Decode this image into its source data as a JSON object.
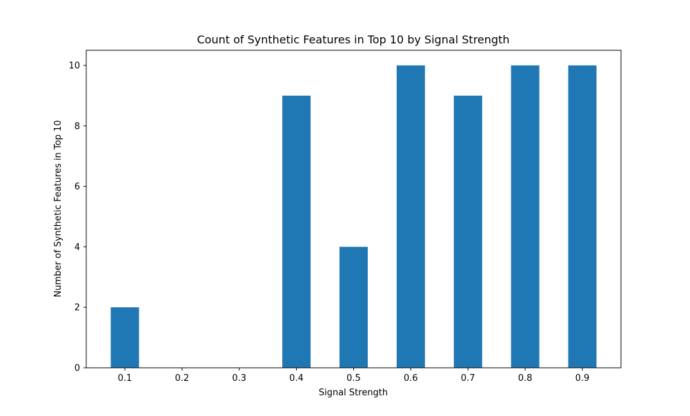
{
  "colors": {
    "bar": "#1f77b4",
    "axis": "#000000",
    "background": "#ffffff"
  },
  "chart_data": {
    "type": "bar",
    "title": "Count of Synthetic Features in Top 10 by Signal Strength",
    "xlabel": "Signal Strength",
    "ylabel": "Number of Synthetic Features in Top 10",
    "categories": [
      "0.1",
      "0.2",
      "0.3",
      "0.4",
      "0.5",
      "0.6",
      "0.7",
      "0.8",
      "0.9"
    ],
    "values": [
      2,
      0,
      0,
      9,
      4,
      10,
      9,
      10,
      10
    ],
    "ylim": [
      0,
      10.5
    ],
    "yticks": [
      0,
      2,
      4,
      6,
      8,
      10
    ],
    "grid": false,
    "legend": "none"
  }
}
